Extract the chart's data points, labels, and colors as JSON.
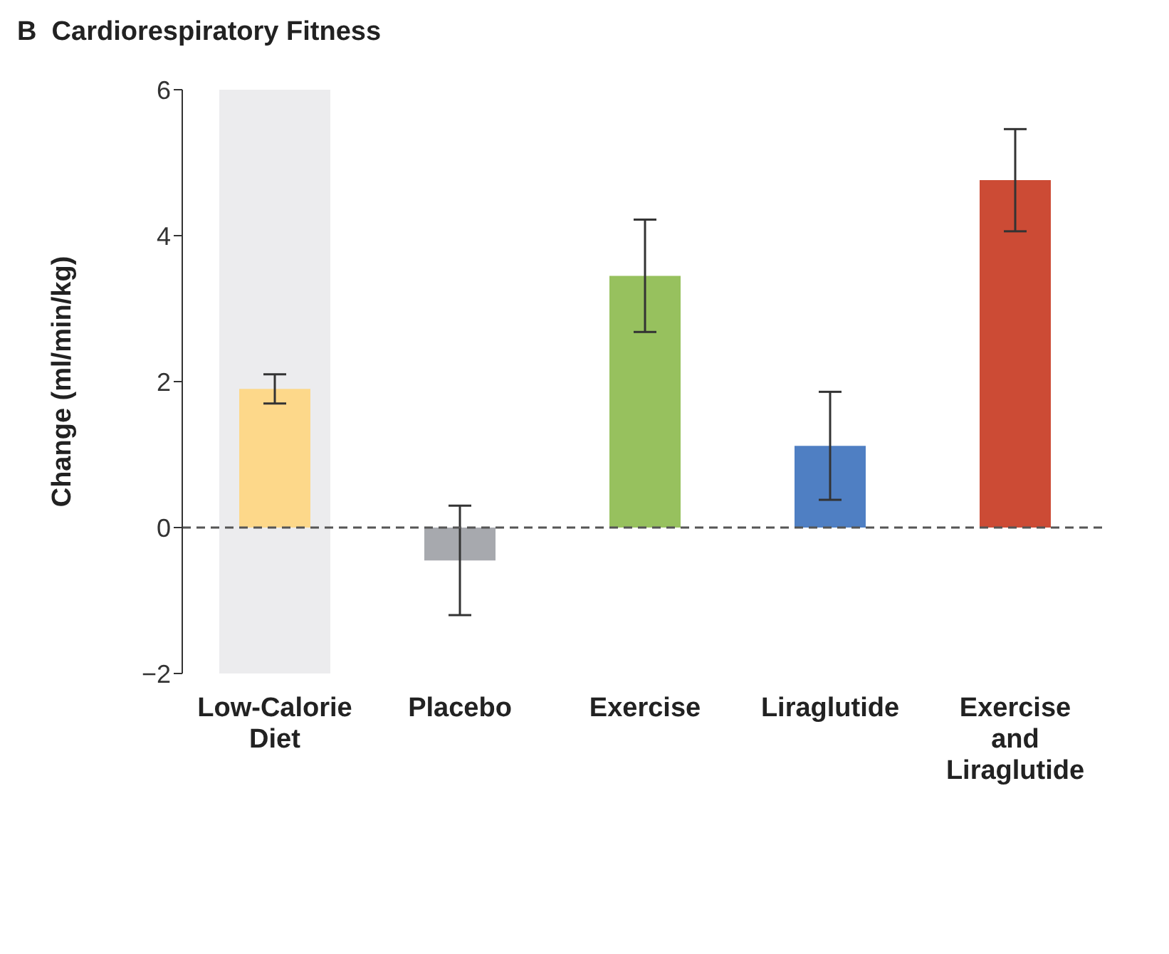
{
  "chart_data": {
    "type": "bar",
    "title": "B  Cardiorespiratory Fitness",
    "ylabel": "Change (ml/min/kg)",
    "categories": [
      "Low-Calorie Diet",
      "Placebo",
      "Exercise",
      "Liraglutide",
      "Exercise and Liraglutide"
    ],
    "values": [
      1.9,
      -0.45,
      3.45,
      1.12,
      4.76
    ],
    "errors": [
      0.2,
      0.75,
      0.77,
      0.74,
      0.7
    ],
    "colors": [
      "#fdd88a",
      "#a7a9ae",
      "#97c15e",
      "#4f7fc3",
      "#cc4b35"
    ],
    "ylim": [
      -2,
      6
    ],
    "yticks": [
      -2,
      0,
      2,
      4,
      6
    ],
    "ref_lines": [
      {
        "axis": "y",
        "value": 0,
        "line_style": "dashed",
        "color": "#555555"
      }
    ],
    "bands": [
      {
        "axis": "x",
        "from": "Low-Calorie Diet",
        "to": "Low-Calorie Diet",
        "color": "#ececee"
      }
    ],
    "grid": false,
    "legend": false
  }
}
